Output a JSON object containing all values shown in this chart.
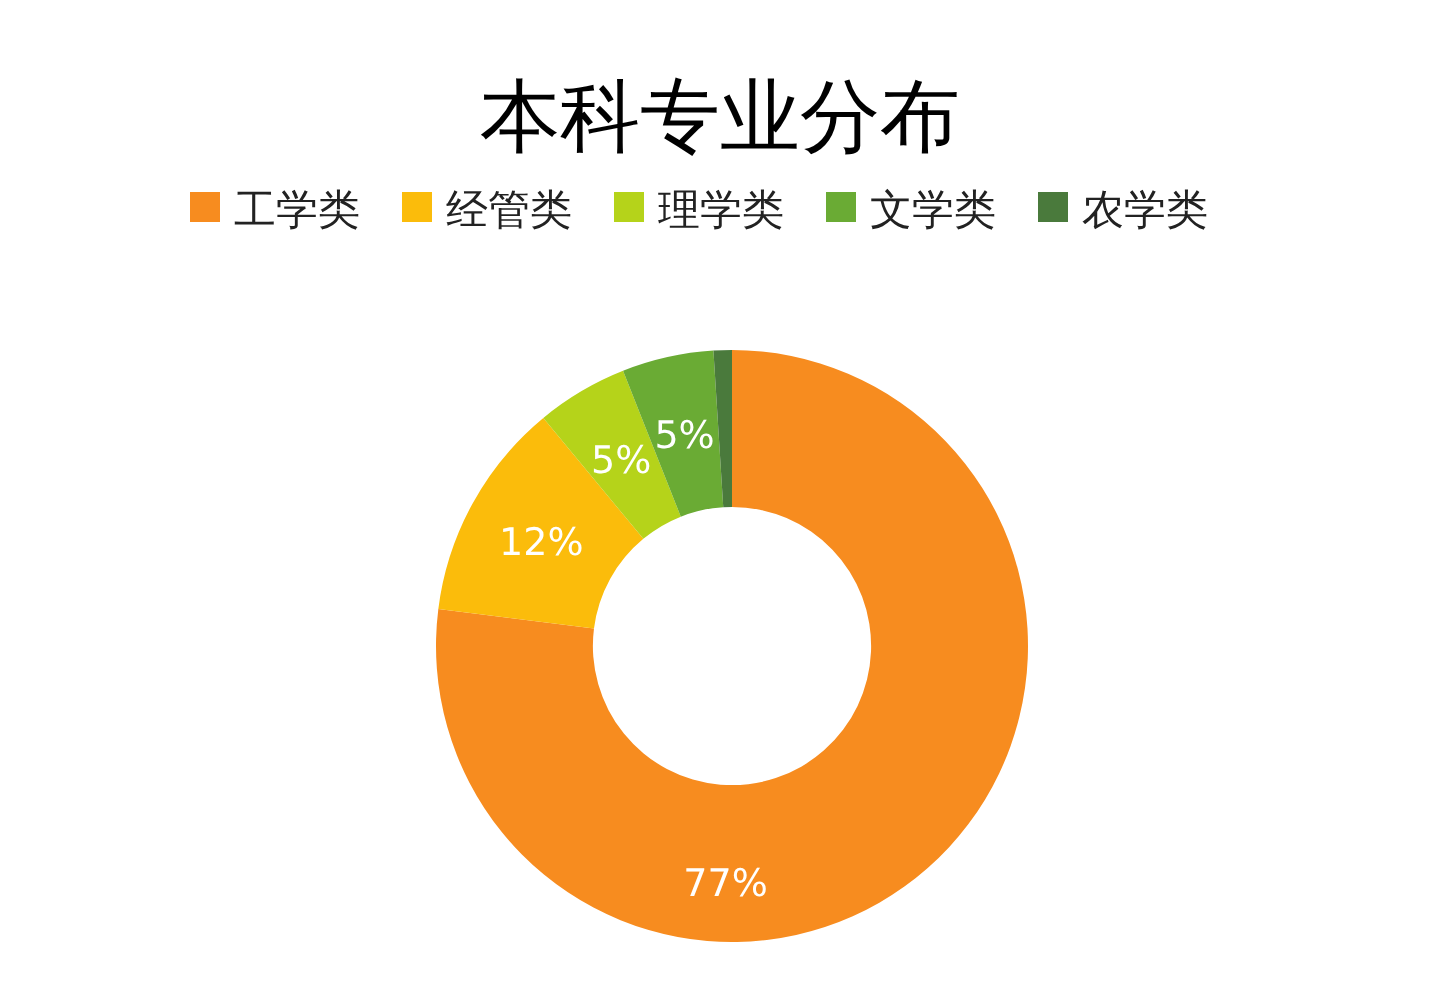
{
  "chart_data": {
    "type": "donut",
    "title": "本科专业分布",
    "categories": [
      "工学类",
      "经管类",
      "理学类",
      "文学类",
      "农学类"
    ],
    "values": [
      77,
      12,
      5,
      5,
      1
    ],
    "colors": [
      "#f78c1f",
      "#fbbc0b",
      "#b5d31a",
      "#6aab34",
      "#4a7a3c"
    ],
    "value_labels": [
      "77%",
      "12%",
      "5%",
      "5%",
      null
    ],
    "legend": "top"
  }
}
